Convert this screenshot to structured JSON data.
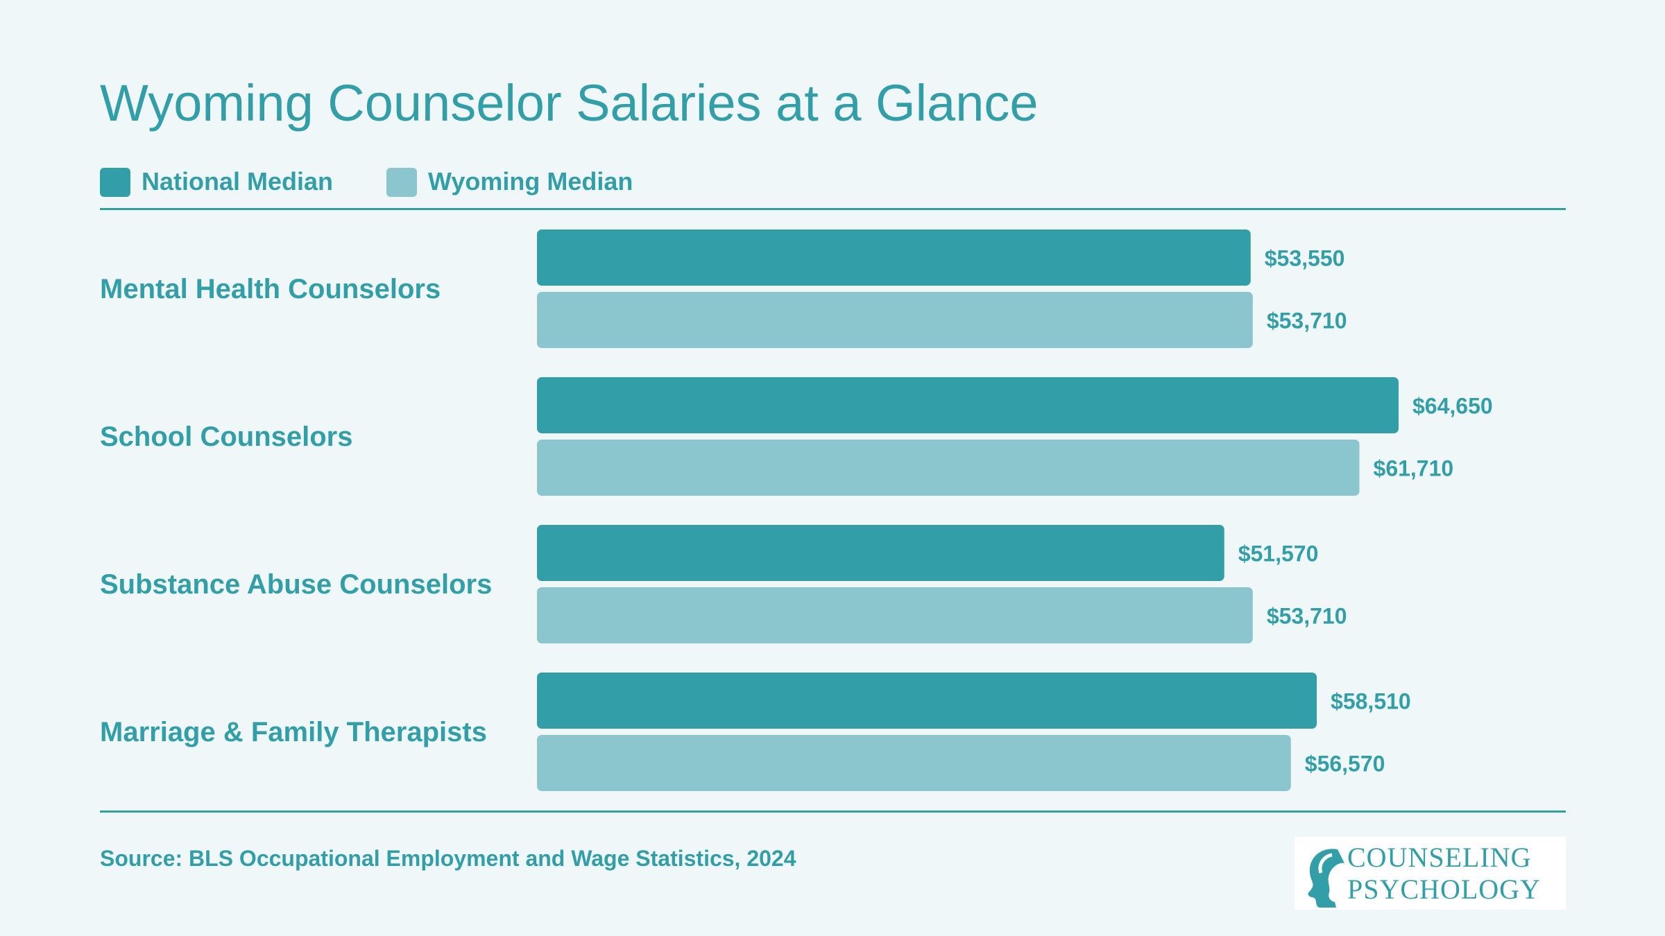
{
  "title": "Wyoming Counselor Salaries at a Glance",
  "legend": [
    {
      "label": "National Median",
      "color": "#329ea8"
    },
    {
      "label": "Wyoming Median",
      "color": "#8bc6cf"
    }
  ],
  "source": "Source: BLS Occupational Employment and Wage Statistics, 2024",
  "logo": {
    "line1": "COUNSELING",
    "line2": "PSYCHOLOGY",
    "icon": "head-profile-icon"
  },
  "chart_data": {
    "type": "bar",
    "orientation": "horizontal",
    "title": "Wyoming Counselor Salaries at a Glance",
    "categories": [
      "Mental Health Counselors",
      "School Counselors",
      "Substance Abuse Counselors",
      "Marriage & Family Therapists"
    ],
    "series": [
      {
        "name": "National Median",
        "color": "#329ea8",
        "values": [
          53550,
          64650,
          51570,
          58510
        ],
        "labels": [
          "$53,550",
          "$64,650",
          "$51,570",
          "$58,510"
        ]
      },
      {
        "name": "Wyoming Median",
        "color": "#8bc6cf",
        "values": [
          53710,
          61710,
          53710,
          56570
        ],
        "labels": [
          "$53,710",
          "$61,710",
          "$53,710",
          "$56,570"
        ]
      }
    ],
    "xlim": [
      0,
      64650
    ],
    "grid": false,
    "legend_position": "top-left"
  }
}
